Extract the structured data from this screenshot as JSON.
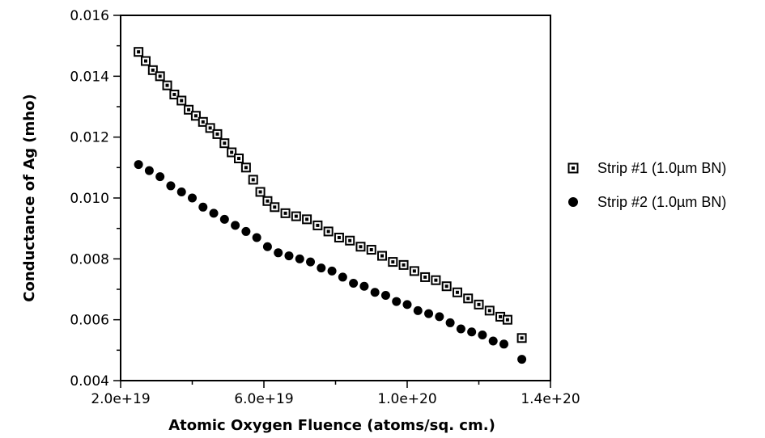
{
  "chart_data": {
    "type": "scatter",
    "title": "",
    "xlabel": "Atomic  Oxygen  Fluence  (atoms/sq.  cm.)",
    "ylabel": "Conductance  of  Ag  (mho)",
    "xlim": [
      2e+19,
      1.4e+20
    ],
    "ylim": [
      0.004,
      0.016
    ],
    "x_ticks": [
      2e+19,
      6e+19,
      1e+20,
      1.4e+20
    ],
    "x_tick_labels": [
      "2.0e+19",
      "6.0e+19",
      "1.0e+20",
      "1.4e+20"
    ],
    "y_ticks": [
      0.004,
      0.006,
      0.008,
      0.01,
      0.012,
      0.014,
      0.016
    ],
    "y_tick_labels": [
      "0.004",
      "0.006",
      "0.008",
      "0.010",
      "0.012",
      "0.014",
      "0.016"
    ],
    "grid": false,
    "legend_position": "right",
    "series": [
      {
        "name": "Strip #1 (1.0µm BN)",
        "marker": "open-square",
        "color": "#000000",
        "points": [
          [
            2.5e+19,
            0.0148
          ],
          [
            2.7e+19,
            0.0145
          ],
          [
            2.9e+19,
            0.0142
          ],
          [
            3.1e+19,
            0.014
          ],
          [
            3.3e+19,
            0.0137
          ],
          [
            3.5e+19,
            0.0134
          ],
          [
            3.7e+19,
            0.0132
          ],
          [
            3.9e+19,
            0.0129
          ],
          [
            4.1e+19,
            0.0127
          ],
          [
            4.3e+19,
            0.0125
          ],
          [
            4.5e+19,
            0.0123
          ],
          [
            4.7e+19,
            0.0121
          ],
          [
            4.9e+19,
            0.0118
          ],
          [
            5.1e+19,
            0.0115
          ],
          [
            5.3e+19,
            0.0113
          ],
          [
            5.5e+19,
            0.011
          ],
          [
            5.7e+19,
            0.0106
          ],
          [
            5.9e+19,
            0.0102
          ],
          [
            6.1e+19,
            0.0099
          ],
          [
            6.3e+19,
            0.0097
          ],
          [
            6.6e+19,
            0.0095
          ],
          [
            6.9e+19,
            0.0094
          ],
          [
            7.2e+19,
            0.0093
          ],
          [
            7.5e+19,
            0.0091
          ],
          [
            7.8e+19,
            0.0089
          ],
          [
            8.1e+19,
            0.0087
          ],
          [
            8.4e+19,
            0.0086
          ],
          [
            8.7e+19,
            0.0084
          ],
          [
            9e+19,
            0.0083
          ],
          [
            9.3e+19,
            0.0081
          ],
          [
            9.6e+19,
            0.0079
          ],
          [
            9.9e+19,
            0.0078
          ],
          [
            1.02e+20,
            0.0076
          ],
          [
            1.05e+20,
            0.0074
          ],
          [
            1.08e+20,
            0.0073
          ],
          [
            1.11e+20,
            0.0071
          ],
          [
            1.14e+20,
            0.0069
          ],
          [
            1.17e+20,
            0.0067
          ],
          [
            1.2e+20,
            0.0065
          ],
          [
            1.23e+20,
            0.0063
          ],
          [
            1.26e+20,
            0.0061
          ],
          [
            1.28e+20,
            0.006
          ],
          [
            1.32e+20,
            0.0054
          ]
        ]
      },
      {
        "name": "Strip #2 (1.0µm BN)",
        "marker": "filled-circle",
        "color": "#000000",
        "points": [
          [
            2.5e+19,
            0.0111
          ],
          [
            2.8e+19,
            0.0109
          ],
          [
            3.1e+19,
            0.0107
          ],
          [
            3.4e+19,
            0.0104
          ],
          [
            3.7e+19,
            0.0102
          ],
          [
            4e+19,
            0.01
          ],
          [
            4.3e+19,
            0.0097
          ],
          [
            4.6e+19,
            0.0095
          ],
          [
            4.9e+19,
            0.0093
          ],
          [
            5.2e+19,
            0.0091
          ],
          [
            5.5e+19,
            0.0089
          ],
          [
            5.8e+19,
            0.0087
          ],
          [
            6.1e+19,
            0.0084
          ],
          [
            6.4e+19,
            0.0082
          ],
          [
            6.7e+19,
            0.0081
          ],
          [
            7e+19,
            0.008
          ],
          [
            7.3e+19,
            0.0079
          ],
          [
            7.6e+19,
            0.0077
          ],
          [
            7.9e+19,
            0.0076
          ],
          [
            8.2e+19,
            0.0074
          ],
          [
            8.5e+19,
            0.0072
          ],
          [
            8.8e+19,
            0.0071
          ],
          [
            9.1e+19,
            0.0069
          ],
          [
            9.4e+19,
            0.0068
          ],
          [
            9.7e+19,
            0.0066
          ],
          [
            1e+20,
            0.0065
          ],
          [
            1.03e+20,
            0.0063
          ],
          [
            1.06e+20,
            0.0062
          ],
          [
            1.09e+20,
            0.0061
          ],
          [
            1.12e+20,
            0.0059
          ],
          [
            1.15e+20,
            0.0057
          ],
          [
            1.18e+20,
            0.0056
          ],
          [
            1.21e+20,
            0.0055
          ],
          [
            1.24e+20,
            0.0053
          ],
          [
            1.27e+20,
            0.0052
          ],
          [
            1.32e+20,
            0.0047
          ]
        ]
      }
    ]
  }
}
